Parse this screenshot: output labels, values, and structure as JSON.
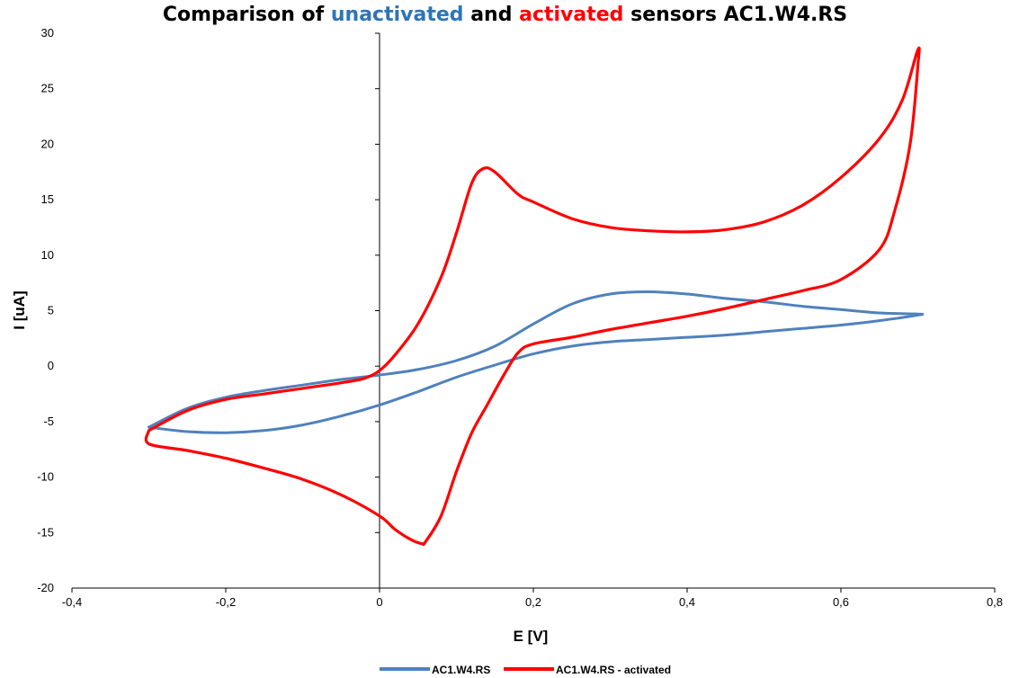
{
  "chart_data": {
    "type": "line",
    "title": {
      "prefix": "Comparison of ",
      "word1": "unactivated",
      "middle": " and ",
      "word2": "activated",
      "suffix": " sensors AC1.W4.RS",
      "word1_color": "#2E75B6",
      "word2_color": "#FF0000"
    },
    "xlabel": "E [V]",
    "ylabel": "I [uA]",
    "xlim": [
      -0.4,
      0.8
    ],
    "ylim": [
      -20,
      30
    ],
    "x_ticks": [
      -0.4,
      -0.2,
      0,
      0.2,
      0.4,
      0.6,
      0.8
    ],
    "x_tick_labels": [
      "-0,4",
      "-0,2",
      "0",
      "0,2",
      "0,4",
      "0,6",
      "0,8"
    ],
    "y_ticks": [
      -20,
      -15,
      -10,
      -5,
      0,
      5,
      10,
      15,
      20,
      25,
      30
    ],
    "y_tick_labels": [
      "-20",
      "-15",
      "-10",
      "-5",
      "0",
      "5",
      "10",
      "15",
      "20",
      "25",
      "30"
    ],
    "grid": false,
    "legend_position": "bottom",
    "series": [
      {
        "name": "AC1.W4.RS",
        "color": "#4F81BD",
        "x": [
          -0.3,
          -0.25,
          -0.2,
          -0.15,
          -0.1,
          -0.05,
          0.0,
          0.05,
          0.1,
          0.15,
          0.2,
          0.25,
          0.3,
          0.35,
          0.4,
          0.45,
          0.5,
          0.55,
          0.6,
          0.65,
          0.7,
          0.7,
          0.65,
          0.6,
          0.55,
          0.5,
          0.45,
          0.4,
          0.35,
          0.3,
          0.25,
          0.2,
          0.15,
          0.1,
          0.05,
          0.0,
          -0.05,
          -0.1,
          -0.15,
          -0.2,
          -0.25,
          -0.3
        ],
        "y": [
          -5.5,
          -3.8,
          -2.8,
          -2.2,
          -1.7,
          -1.2,
          -0.8,
          -0.3,
          0.5,
          1.8,
          3.8,
          5.6,
          6.5,
          6.7,
          6.5,
          6.1,
          5.8,
          5.4,
          5.1,
          4.8,
          4.7,
          4.6,
          4.1,
          3.7,
          3.4,
          3.1,
          2.8,
          2.6,
          2.4,
          2.2,
          1.8,
          1.1,
          0.1,
          -1.0,
          -2.3,
          -3.5,
          -4.5,
          -5.3,
          -5.8,
          -6.0,
          -5.9,
          -5.5
        ]
      },
      {
        "name": "AC1.W4.RS - activated",
        "color": "#FF0000",
        "x": [
          -0.3,
          -0.25,
          -0.2,
          -0.15,
          -0.1,
          -0.05,
          -0.02,
          0.0,
          0.02,
          0.05,
          0.08,
          0.1,
          0.12,
          0.135,
          0.15,
          0.18,
          0.2,
          0.25,
          0.3,
          0.35,
          0.4,
          0.45,
          0.5,
          0.55,
          0.6,
          0.65,
          0.68,
          0.7,
          0.7,
          0.69,
          0.67,
          0.65,
          0.6,
          0.55,
          0.5,
          0.45,
          0.4,
          0.35,
          0.3,
          0.25,
          0.2,
          0.18,
          0.16,
          0.14,
          0.12,
          0.1,
          0.08,
          0.06,
          0.055,
          0.04,
          0.02,
          0.0,
          -0.05,
          -0.1,
          -0.15,
          -0.2,
          -0.25,
          -0.3,
          -0.3
        ],
        "y": [
          -5.8,
          -4.0,
          -3.0,
          -2.5,
          -2.0,
          -1.5,
          -1.1,
          -0.4,
          1.0,
          3.8,
          8.0,
          12.0,
          16.5,
          17.8,
          17.5,
          15.5,
          14.8,
          13.3,
          12.5,
          12.2,
          12.1,
          12.3,
          13.0,
          14.5,
          17.0,
          20.5,
          24.0,
          28.5,
          27.0,
          20.0,
          14.0,
          10.5,
          7.8,
          6.8,
          6.0,
          5.2,
          4.5,
          3.9,
          3.3,
          2.6,
          2.0,
          1.2,
          -1.0,
          -3.5,
          -6.0,
          -9.5,
          -13.5,
          -15.8,
          -16.0,
          -15.6,
          -14.7,
          -13.5,
          -11.6,
          -10.2,
          -9.2,
          -8.3,
          -7.6,
          -7.0,
          -5.8
        ]
      }
    ]
  }
}
